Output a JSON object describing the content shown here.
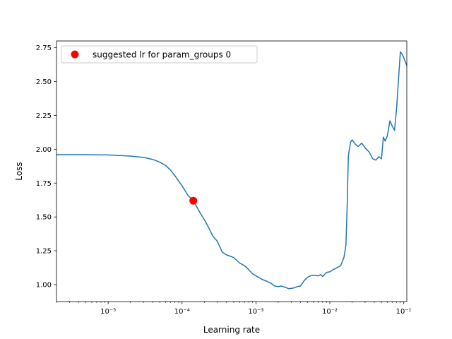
{
  "chart_data": {
    "type": "line",
    "title": "",
    "xlabel": "Learning rate",
    "ylabel": "Loss",
    "xscale": "log",
    "xlim": [
      2e-06,
      0.11
    ],
    "ylim": [
      0.875,
      2.8
    ],
    "grid": false,
    "legend_position": "top-left",
    "x_tick_labels": [
      "10⁻⁵",
      "10⁻⁴",
      "10⁻³",
      "10⁻²",
      "10⁻¹"
    ],
    "x_ticks": [
      1e-05,
      0.0001,
      0.001,
      0.01,
      0.1
    ],
    "y_tick_labels": [
      "1.00",
      "1.25",
      "1.50",
      "1.75",
      "2.00",
      "2.25",
      "2.50",
      "2.75"
    ],
    "y_ticks": [
      1.0,
      1.25,
      1.5,
      1.75,
      2.0,
      2.25,
      2.5,
      2.75
    ],
    "series": [
      {
        "color": "#1f77b4",
        "points": [
          [
            2e-06,
            1.96
          ],
          [
            5e-06,
            1.96
          ],
          [
            1e-05,
            1.958
          ],
          [
            2e-05,
            1.95
          ],
          [
            3e-05,
            1.94
          ],
          [
            4e-05,
            1.925
          ],
          [
            5e-05,
            1.905
          ],
          [
            6e-05,
            1.88
          ],
          [
            7e-05,
            1.845
          ],
          [
            8e-05,
            1.805
          ],
          [
            9e-05,
            1.765
          ],
          [
            0.0001,
            1.73
          ],
          [
            0.00012,
            1.66
          ],
          [
            0.000142,
            1.62
          ],
          [
            0.00016,
            1.57
          ],
          [
            0.00018,
            1.52
          ],
          [
            0.0002,
            1.48
          ],
          [
            0.00023,
            1.42
          ],
          [
            0.00026,
            1.36
          ],
          [
            0.0003,
            1.32
          ],
          [
            0.00035,
            1.24
          ],
          [
            0.0004,
            1.22
          ],
          [
            0.0005,
            1.2
          ],
          [
            0.0006,
            1.16
          ],
          [
            0.0007,
            1.14
          ],
          [
            0.0008,
            1.11
          ],
          [
            0.0009,
            1.08
          ],
          [
            0.001,
            1.065
          ],
          [
            0.0012,
            1.04
          ],
          [
            0.0014,
            1.025
          ],
          [
            0.0016,
            1.01
          ],
          [
            0.0018,
            0.99
          ],
          [
            0.002,
            0.985
          ],
          [
            0.0022,
            0.99
          ],
          [
            0.0025,
            0.98
          ],
          [
            0.0028,
            0.97
          ],
          [
            0.0032,
            0.975
          ],
          [
            0.0036,
            0.985
          ],
          [
            0.004,
            0.99
          ],
          [
            0.0045,
            1.03
          ],
          [
            0.005,
            1.055
          ],
          [
            0.0055,
            1.065
          ],
          [
            0.006,
            1.07
          ],
          [
            0.007,
            1.065
          ],
          [
            0.0075,
            1.075
          ],
          [
            0.008,
            1.06
          ],
          [
            0.009,
            1.09
          ],
          [
            0.01,
            1.095
          ],
          [
            0.011,
            1.11
          ],
          [
            0.012,
            1.12
          ],
          [
            0.014,
            1.14
          ],
          [
            0.0155,
            1.2
          ],
          [
            0.0165,
            1.29
          ],
          [
            0.0172,
            1.6
          ],
          [
            0.0178,
            1.95
          ],
          [
            0.019,
            2.05
          ],
          [
            0.02,
            2.07
          ],
          [
            0.022,
            2.04
          ],
          [
            0.024,
            2.02
          ],
          [
            0.027,
            2.045
          ],
          [
            0.03,
            2.01
          ],
          [
            0.034,
            1.98
          ],
          [
            0.038,
            1.93
          ],
          [
            0.042,
            1.92
          ],
          [
            0.046,
            1.945
          ],
          [
            0.05,
            1.93
          ],
          [
            0.053,
            2.09
          ],
          [
            0.056,
            2.06
          ],
          [
            0.06,
            2.1
          ],
          [
            0.065,
            2.21
          ],
          [
            0.07,
            2.17
          ],
          [
            0.075,
            2.14
          ],
          [
            0.08,
            2.3
          ],
          [
            0.086,
            2.56
          ],
          [
            0.09,
            2.72
          ],
          [
            0.096,
            2.7
          ],
          [
            0.11,
            2.62
          ]
        ]
      }
    ],
    "suggested_point": {
      "label": "suggested lr for param_groups 0",
      "x": 0.000142,
      "y": 1.62,
      "color": "#ff0000"
    }
  }
}
